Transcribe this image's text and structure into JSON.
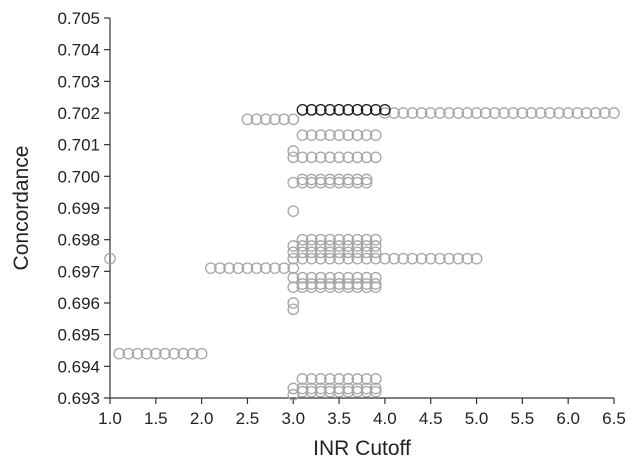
{
  "chart_data": {
    "type": "scatter",
    "title": "",
    "xlabel": "INR Cutoff",
    "ylabel": "Concordance",
    "xlim": [
      1.0,
      6.5
    ],
    "ylim": [
      0.693,
      0.705
    ],
    "x_ticks": [
      "1.0",
      "1.5",
      "2.0",
      "2.5",
      "3.0",
      "3.5",
      "4.0",
      "4.5",
      "5.0",
      "5.5",
      "6.0",
      "6.5"
    ],
    "y_ticks": [
      "0.693",
      "0.694",
      "0.695",
      "0.696",
      "0.697",
      "0.698",
      "0.699",
      "0.700",
      "0.701",
      "0.702",
      "0.703",
      "0.704",
      "0.705"
    ],
    "grid": false,
    "legend": "none",
    "colors": {
      "normal": "#a6a6a6",
      "highlight": "#1a1a1a",
      "axis": "#333333"
    },
    "series": [
      {
        "style": "normal",
        "points": [
          [
            1.0,
            0.6974
          ],
          [
            1.1,
            0.6944
          ],
          [
            1.2,
            0.6944
          ],
          [
            1.3,
            0.6944
          ],
          [
            1.4,
            0.6944
          ],
          [
            1.5,
            0.6944
          ],
          [
            1.6,
            0.6944
          ],
          [
            1.7,
            0.6944
          ],
          [
            1.8,
            0.6944
          ],
          [
            1.9,
            0.6944
          ],
          [
            2.0,
            0.6944
          ],
          [
            2.1,
            0.6971
          ],
          [
            2.2,
            0.6971
          ],
          [
            2.3,
            0.6971
          ],
          [
            2.4,
            0.6971
          ],
          [
            2.5,
            0.6971
          ],
          [
            2.6,
            0.6971
          ],
          [
            2.7,
            0.6971
          ],
          [
            2.8,
            0.6971
          ],
          [
            2.9,
            0.6971
          ],
          [
            2.5,
            0.7018
          ],
          [
            2.6,
            0.7018
          ],
          [
            2.7,
            0.7018
          ],
          [
            2.8,
            0.7018
          ],
          [
            2.9,
            0.7018
          ],
          [
            3.0,
            0.7018
          ],
          [
            3.0,
            0.7008
          ],
          [
            3.0,
            0.7006
          ],
          [
            3.0,
            0.6998
          ],
          [
            3.0,
            0.6989
          ],
          [
            3.0,
            0.6978
          ],
          [
            3.0,
            0.6976
          ],
          [
            3.0,
            0.6974
          ],
          [
            3.0,
            0.6971
          ],
          [
            3.0,
            0.6968
          ],
          [
            3.0,
            0.6965
          ],
          [
            3.0,
            0.696
          ],
          [
            3.0,
            0.6958
          ],
          [
            3.0,
            0.6933
          ],
          [
            3.0,
            0.6931
          ],
          [
            3.1,
            0.7013
          ],
          [
            3.2,
            0.7013
          ],
          [
            3.3,
            0.7013
          ],
          [
            3.4,
            0.7013
          ],
          [
            3.5,
            0.7013
          ],
          [
            3.6,
            0.7013
          ],
          [
            3.7,
            0.7013
          ],
          [
            3.8,
            0.7013
          ],
          [
            3.9,
            0.7013
          ],
          [
            3.1,
            0.7006
          ],
          [
            3.2,
            0.7006
          ],
          [
            3.3,
            0.7006
          ],
          [
            3.4,
            0.7006
          ],
          [
            3.5,
            0.7006
          ],
          [
            3.6,
            0.7006
          ],
          [
            3.7,
            0.7006
          ],
          [
            3.8,
            0.7006
          ],
          [
            3.9,
            0.7006
          ],
          [
            3.1,
            0.6999
          ],
          [
            3.2,
            0.6999
          ],
          [
            3.3,
            0.6999
          ],
          [
            3.4,
            0.6999
          ],
          [
            3.5,
            0.6999
          ],
          [
            3.6,
            0.6999
          ],
          [
            3.7,
            0.6999
          ],
          [
            3.8,
            0.6999
          ],
          [
            3.1,
            0.6998
          ],
          [
            3.2,
            0.6998
          ],
          [
            3.3,
            0.6998
          ],
          [
            3.4,
            0.6998
          ],
          [
            3.5,
            0.6998
          ],
          [
            3.6,
            0.6998
          ],
          [
            3.7,
            0.6998
          ],
          [
            3.8,
            0.6998
          ],
          [
            3.1,
            0.698
          ],
          [
            3.2,
            0.698
          ],
          [
            3.3,
            0.698
          ],
          [
            3.4,
            0.698
          ],
          [
            3.5,
            0.698
          ],
          [
            3.6,
            0.698
          ],
          [
            3.7,
            0.698
          ],
          [
            3.8,
            0.698
          ],
          [
            3.9,
            0.698
          ],
          [
            3.1,
            0.6978
          ],
          [
            3.2,
            0.6978
          ],
          [
            3.3,
            0.6978
          ],
          [
            3.4,
            0.6978
          ],
          [
            3.5,
            0.6978
          ],
          [
            3.6,
            0.6978
          ],
          [
            3.7,
            0.6978
          ],
          [
            3.8,
            0.6978
          ],
          [
            3.9,
            0.6978
          ],
          [
            3.1,
            0.6976
          ],
          [
            3.2,
            0.6976
          ],
          [
            3.3,
            0.6976
          ],
          [
            3.4,
            0.6976
          ],
          [
            3.5,
            0.6976
          ],
          [
            3.6,
            0.6976
          ],
          [
            3.7,
            0.6976
          ],
          [
            3.8,
            0.6976
          ],
          [
            3.9,
            0.6976
          ],
          [
            3.1,
            0.6974
          ],
          [
            3.2,
            0.6974
          ],
          [
            3.3,
            0.6974
          ],
          [
            3.4,
            0.6974
          ],
          [
            3.5,
            0.6974
          ],
          [
            3.6,
            0.6974
          ],
          [
            3.7,
            0.6974
          ],
          [
            3.8,
            0.6974
          ],
          [
            3.9,
            0.6974
          ],
          [
            4.0,
            0.6974
          ],
          [
            4.1,
            0.6974
          ],
          [
            4.2,
            0.6974
          ],
          [
            4.3,
            0.6974
          ],
          [
            4.4,
            0.6974
          ],
          [
            4.5,
            0.6974
          ],
          [
            4.6,
            0.6974
          ],
          [
            4.7,
            0.6974
          ],
          [
            4.8,
            0.6974
          ],
          [
            4.9,
            0.6974
          ],
          [
            5.0,
            0.6974
          ],
          [
            3.1,
            0.6968
          ],
          [
            3.2,
            0.6968
          ],
          [
            3.3,
            0.6968
          ],
          [
            3.4,
            0.6968
          ],
          [
            3.5,
            0.6968
          ],
          [
            3.6,
            0.6968
          ],
          [
            3.7,
            0.6968
          ],
          [
            3.8,
            0.6968
          ],
          [
            3.9,
            0.6968
          ],
          [
            3.1,
            0.6966
          ],
          [
            3.2,
            0.6966
          ],
          [
            3.3,
            0.6966
          ],
          [
            3.4,
            0.6966
          ],
          [
            3.5,
            0.6966
          ],
          [
            3.6,
            0.6966
          ],
          [
            3.7,
            0.6966
          ],
          [
            3.8,
            0.6966
          ],
          [
            3.9,
            0.6966
          ],
          [
            3.1,
            0.6965
          ],
          [
            3.2,
            0.6965
          ],
          [
            3.3,
            0.6965
          ],
          [
            3.4,
            0.6965
          ],
          [
            3.5,
            0.6965
          ],
          [
            3.6,
            0.6965
          ],
          [
            3.7,
            0.6965
          ],
          [
            3.8,
            0.6965
          ],
          [
            3.9,
            0.6965
          ],
          [
            3.1,
            0.6936
          ],
          [
            3.2,
            0.6936
          ],
          [
            3.3,
            0.6936
          ],
          [
            3.4,
            0.6936
          ],
          [
            3.5,
            0.6936
          ],
          [
            3.6,
            0.6936
          ],
          [
            3.7,
            0.6936
          ],
          [
            3.8,
            0.6936
          ],
          [
            3.9,
            0.6936
          ],
          [
            3.1,
            0.6933
          ],
          [
            3.2,
            0.6933
          ],
          [
            3.3,
            0.6933
          ],
          [
            3.4,
            0.6933
          ],
          [
            3.5,
            0.6933
          ],
          [
            3.6,
            0.6933
          ],
          [
            3.7,
            0.6933
          ],
          [
            3.8,
            0.6933
          ],
          [
            3.9,
            0.6933
          ],
          [
            3.1,
            0.6932
          ],
          [
            3.2,
            0.6932
          ],
          [
            3.3,
            0.6932
          ],
          [
            3.4,
            0.6932
          ],
          [
            3.5,
            0.6932
          ],
          [
            3.6,
            0.6932
          ],
          [
            3.7,
            0.6932
          ],
          [
            3.8,
            0.6932
          ],
          [
            3.9,
            0.6932
          ],
          [
            4.0,
            0.702
          ],
          [
            4.1,
            0.702
          ],
          [
            4.2,
            0.702
          ],
          [
            4.3,
            0.702
          ],
          [
            4.4,
            0.702
          ],
          [
            4.5,
            0.702
          ],
          [
            4.6,
            0.702
          ],
          [
            4.7,
            0.702
          ],
          [
            4.8,
            0.702
          ],
          [
            4.9,
            0.702
          ],
          [
            5.0,
            0.702
          ],
          [
            5.1,
            0.702
          ],
          [
            5.2,
            0.702
          ],
          [
            5.3,
            0.702
          ],
          [
            5.4,
            0.702
          ],
          [
            5.5,
            0.702
          ],
          [
            5.6,
            0.702
          ],
          [
            5.7,
            0.702
          ],
          [
            5.8,
            0.702
          ],
          [
            5.9,
            0.702
          ],
          [
            6.0,
            0.702
          ],
          [
            6.1,
            0.702
          ],
          [
            6.2,
            0.702
          ],
          [
            6.3,
            0.702
          ],
          [
            6.4,
            0.702
          ],
          [
            6.5,
            0.702
          ]
        ]
      },
      {
        "style": "highlight",
        "points": [
          [
            3.1,
            0.7021
          ],
          [
            3.2,
            0.7021
          ],
          [
            3.3,
            0.7021
          ],
          [
            3.4,
            0.7021
          ],
          [
            3.5,
            0.7021
          ],
          [
            3.6,
            0.7021
          ],
          [
            3.7,
            0.7021
          ],
          [
            3.8,
            0.7021
          ],
          [
            3.9,
            0.7021
          ],
          [
            4.0,
            0.7021
          ]
        ]
      }
    ]
  }
}
